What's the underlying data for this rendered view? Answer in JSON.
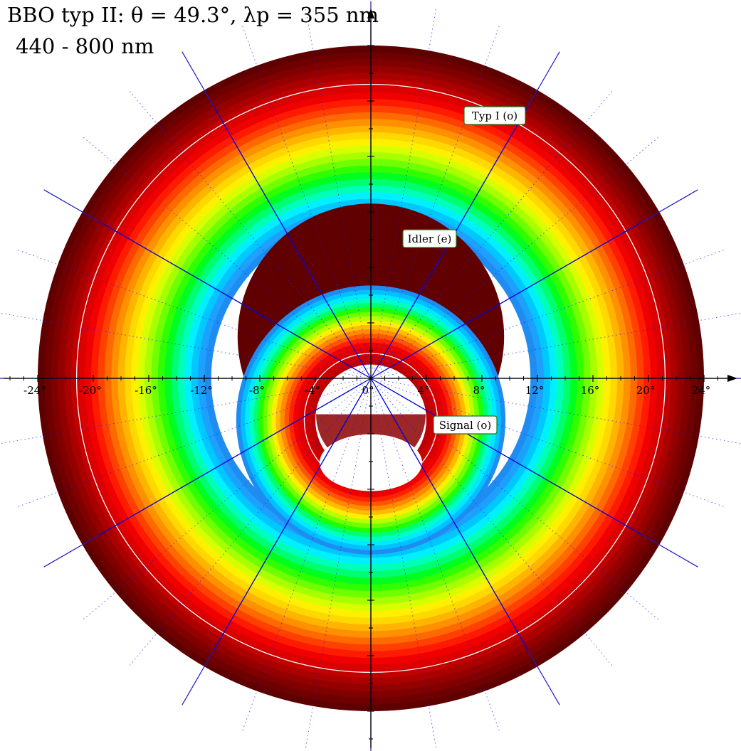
{
  "header": {
    "title": "BBO typ II: θ = 49.3°, λp = 355 nm",
    "subtitle": "440 - 800 nm"
  },
  "chart_data": {
    "type": "polar-contour",
    "title": "BBO typ II: θ = 49.3°, λp = 355 nm",
    "wavelength_range_nm": [
      440,
      800
    ],
    "axis_unit": "deg",
    "x_ticks": [
      -24,
      -20,
      -16,
      -12,
      -8,
      -4,
      0,
      4,
      8,
      12,
      16,
      20,
      24
    ],
    "x_tick_labels": [
      "-24°",
      "-20°",
      "-16°",
      "-12°",
      "-8°",
      "-4°",
      "0°",
      "4°",
      "8°",
      "12°",
      "16°",
      "20°",
      "24°"
    ],
    "xlim": [
      -27,
      27
    ],
    "grid": true,
    "color_scale": [
      "#5a0000",
      "#8b0000",
      "#cc0000",
      "#ff0000",
      "#ff5500",
      "#ff9900",
      "#ffee00",
      "#aaff00",
      "#00ff00",
      "#00ffaa",
      "#00e5ff",
      "#0088ff"
    ],
    "cones": [
      {
        "name": "Typ I (o)",
        "center_deg": [
          0,
          0
        ],
        "inner_radius_deg": 11.5,
        "outer_radius_deg": 24.0,
        "reference_circle_deg": 21.2
      },
      {
        "name": "Idler (e)",
        "center_deg": [
          0,
          3.0
        ],
        "inner_radius_deg": 5.3,
        "outer_radius_deg": 9.6,
        "bands": "inner-edge",
        "reference_circle_deg": null
      },
      {
        "name": "Signal (o)",
        "center_deg": [
          0,
          -3.0
        ],
        "inner_radius_deg": 4.0,
        "outer_radius_deg": 9.7,
        "reference_circle_deg": 4.8
      }
    ],
    "annotations": [
      "Typ I (o)",
      "Idler (e)",
      "Signal (o)"
    ]
  },
  "labels": {
    "typ1": "Typ I (o)",
    "idler": "Idler (e)",
    "signal": "Signal (o)"
  }
}
